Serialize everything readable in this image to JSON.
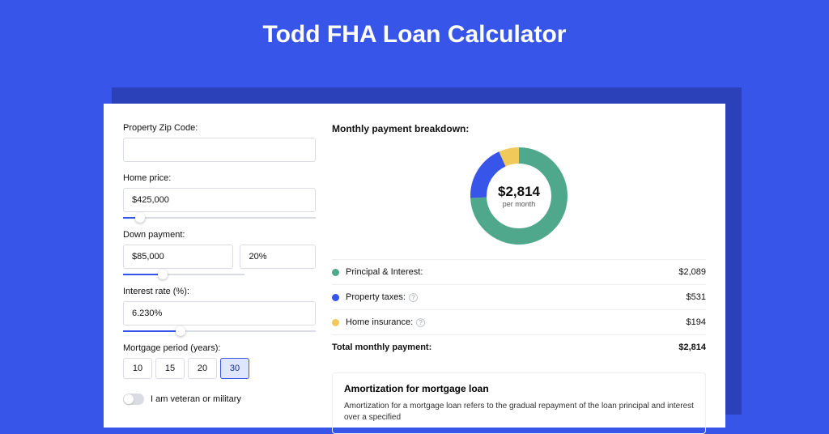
{
  "title": "Todd FHA Loan Calculator",
  "colors": {
    "page_bg": "#3755e8",
    "card_bg": "#ffffff",
    "shadow": "#2b41ba",
    "accent": "#3755e8",
    "border": "#d9dde3",
    "row_border": "#eceef2"
  },
  "form": {
    "zip": {
      "label": "Property Zip Code:",
      "value": ""
    },
    "price": {
      "label": "Home price:",
      "value": "$425,000",
      "slider_pct": 9
    },
    "down": {
      "label": "Down payment:",
      "value": "$85,000",
      "pct": "20%",
      "slider_pct": 20
    },
    "rate": {
      "label": "Interest rate (%):",
      "value": "6.230%",
      "slider_pct": 30
    },
    "term": {
      "label": "Mortgage period (years):",
      "options": [
        "10",
        "15",
        "20",
        "30"
      ],
      "selected": "30"
    },
    "veteran": {
      "label": "I am veteran or military",
      "on": false
    }
  },
  "breakdown": {
    "heading": "Monthly payment breakdown:",
    "center_amount": "$2,814",
    "center_sub": "per month",
    "donut": {
      "type": "pie",
      "radius": 50,
      "stroke_width": 20,
      "circumference": 314.159,
      "track_color": "#f2f3f6",
      "slices": [
        {
          "key": "principal_interest",
          "fraction": 0.742,
          "color": "#4fa88b"
        },
        {
          "key": "property_taxes",
          "fraction": 0.189,
          "color": "#3755e8"
        },
        {
          "key": "home_insurance",
          "fraction": 0.069,
          "color": "#f1c95a"
        }
      ]
    },
    "rows": [
      {
        "label": "Principal & Interest:",
        "value": "$2,089",
        "color": "#4fa88b",
        "help": false
      },
      {
        "label": "Property taxes:",
        "value": "$531",
        "color": "#3755e8",
        "help": true
      },
      {
        "label": "Home insurance:",
        "value": "$194",
        "color": "#f1c95a",
        "help": true
      }
    ],
    "total": {
      "label": "Total monthly payment:",
      "value": "$2,814"
    }
  },
  "amort": {
    "heading": "Amortization for mortgage loan",
    "body": "Amortization for a mortgage loan refers to the gradual repayment of the loan principal and interest over a specified"
  }
}
